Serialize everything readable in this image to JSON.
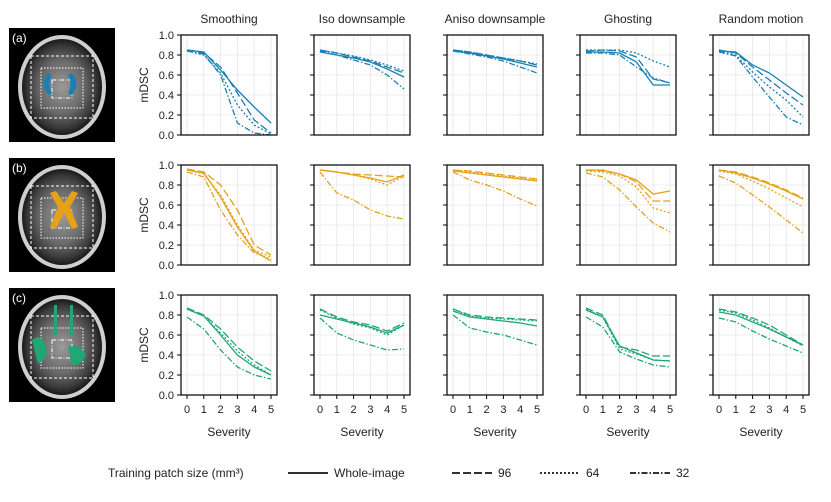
{
  "chart_data": {
    "type": "line",
    "columns": [
      "Smoothing",
      "Iso downsample",
      "Aniso downsample",
      "Ghosting",
      "Random motion"
    ],
    "rows": [
      {
        "label": "(a)",
        "color": "#1a7fb4"
      },
      {
        "label": "(b)",
        "color": "#e6a11b"
      },
      {
        "label": "(c)",
        "color": "#1fa774"
      }
    ],
    "ylabel": "mDSC",
    "xlabel": "Severity",
    "x": [
      0,
      1,
      2,
      3,
      4,
      5
    ],
    "xticks": [
      "0",
      "1",
      "2",
      "3",
      "4",
      "5"
    ],
    "ylim": [
      0,
      1
    ],
    "yticks": [
      "0.0",
      "0.2",
      "0.4",
      "0.6",
      "0.8",
      "1.0"
    ],
    "grid": true,
    "legend": {
      "title": "Training patch size (mm³)",
      "entries": [
        {
          "label": "Whole-image",
          "style": "solid"
        },
        {
          "label": "96",
          "style": "dashed"
        },
        {
          "label": "64",
          "style": "dotted"
        },
        {
          "label": "32",
          "style": "dashdot"
        }
      ],
      "position": "bottom"
    },
    "series": [
      [
        [
          [
            0.85,
            0.83,
            0.65,
            0.45,
            0.28,
            0.12
          ],
          [
            0.85,
            0.82,
            0.68,
            0.42,
            0.15,
            0.02
          ],
          [
            0.84,
            0.8,
            0.62,
            0.3,
            0.1,
            0.01
          ],
          [
            0.84,
            0.81,
            0.6,
            0.12,
            0.02,
            0.0
          ]
        ],
        [
          [
            0.83,
            0.8,
            0.77,
            0.73,
            0.66,
            0.58
          ],
          [
            0.85,
            0.82,
            0.78,
            0.74,
            0.68,
            0.62
          ],
          [
            0.85,
            0.82,
            0.79,
            0.75,
            0.7,
            0.64
          ],
          [
            0.84,
            0.8,
            0.75,
            0.7,
            0.6,
            0.46
          ]
        ],
        [
          [
            0.84,
            0.82,
            0.79,
            0.76,
            0.72,
            0.68
          ],
          [
            0.85,
            0.83,
            0.8,
            0.77,
            0.74,
            0.7
          ],
          [
            0.85,
            0.83,
            0.8,
            0.77,
            0.74,
            0.71
          ],
          [
            0.84,
            0.81,
            0.78,
            0.74,
            0.68,
            0.62
          ]
        ],
        [
          [
            0.83,
            0.83,
            0.82,
            0.73,
            0.5,
            0.5
          ],
          [
            0.84,
            0.85,
            0.84,
            0.78,
            0.56,
            0.52
          ],
          [
            0.85,
            0.85,
            0.85,
            0.82,
            0.74,
            0.68
          ],
          [
            0.82,
            0.82,
            0.8,
            0.68,
            0.57,
            0.52
          ]
        ],
        [
          [
            0.84,
            0.83,
            0.7,
            0.62,
            0.5,
            0.38
          ],
          [
            0.85,
            0.82,
            0.68,
            0.55,
            0.42,
            0.3
          ],
          [
            0.84,
            0.8,
            0.63,
            0.48,
            0.35,
            0.18
          ],
          [
            0.83,
            0.79,
            0.58,
            0.38,
            0.18,
            0.1
          ]
        ]
      ],
      [
        [
          [
            0.95,
            0.92,
            0.68,
            0.38,
            0.14,
            0.04
          ],
          [
            0.96,
            0.93,
            0.8,
            0.55,
            0.2,
            0.1
          ],
          [
            0.95,
            0.91,
            0.7,
            0.4,
            0.15,
            0.08
          ],
          [
            0.93,
            0.88,
            0.55,
            0.3,
            0.12,
            0.06
          ]
        ],
        [
          [
            0.95,
            0.93,
            0.9,
            0.87,
            0.83,
            0.9
          ],
          [
            0.95,
            0.93,
            0.91,
            0.9,
            0.89,
            0.88
          ],
          [
            0.95,
            0.93,
            0.9,
            0.86,
            0.8,
            0.89
          ],
          [
            0.93,
            0.72,
            0.65,
            0.55,
            0.49,
            0.46
          ]
        ],
        [
          [
            0.94,
            0.92,
            0.9,
            0.88,
            0.86,
            0.84
          ],
          [
            0.95,
            0.94,
            0.92,
            0.9,
            0.88,
            0.86
          ],
          [
            0.95,
            0.93,
            0.91,
            0.89,
            0.87,
            0.85
          ],
          [
            0.93,
            0.85,
            0.8,
            0.74,
            0.66,
            0.59
          ]
        ],
        [
          [
            0.95,
            0.95,
            0.91,
            0.85,
            0.71,
            0.74
          ],
          [
            0.95,
            0.94,
            0.91,
            0.83,
            0.64,
            0.64
          ],
          [
            0.94,
            0.93,
            0.89,
            0.78,
            0.57,
            0.52
          ],
          [
            0.92,
            0.88,
            0.75,
            0.58,
            0.42,
            0.33
          ]
        ],
        [
          [
            0.95,
            0.92,
            0.87,
            0.81,
            0.74,
            0.66
          ],
          [
            0.95,
            0.93,
            0.88,
            0.82,
            0.75,
            0.67
          ],
          [
            0.94,
            0.91,
            0.84,
            0.76,
            0.67,
            0.58
          ],
          [
            0.89,
            0.82,
            0.7,
            0.58,
            0.45,
            0.32
          ]
        ]
      ],
      [
        [
          [
            0.86,
            0.79,
            0.6,
            0.4,
            0.28,
            0.2
          ],
          [
            0.87,
            0.8,
            0.66,
            0.48,
            0.34,
            0.24
          ],
          [
            0.86,
            0.79,
            0.62,
            0.44,
            0.3,
            0.2
          ],
          [
            0.78,
            0.66,
            0.45,
            0.28,
            0.2,
            0.16
          ]
        ],
        [
          [
            0.8,
            0.76,
            0.72,
            0.68,
            0.62,
            0.7
          ],
          [
            0.86,
            0.78,
            0.73,
            0.7,
            0.64,
            0.72
          ],
          [
            0.85,
            0.77,
            0.71,
            0.67,
            0.6,
            0.7
          ],
          [
            0.77,
            0.62,
            0.55,
            0.5,
            0.45,
            0.46
          ]
        ],
        [
          [
            0.84,
            0.78,
            0.76,
            0.74,
            0.72,
            0.69
          ],
          [
            0.86,
            0.8,
            0.78,
            0.77,
            0.76,
            0.75
          ],
          [
            0.86,
            0.79,
            0.77,
            0.76,
            0.75,
            0.74
          ],
          [
            0.8,
            0.67,
            0.63,
            0.6,
            0.55,
            0.5
          ]
        ],
        [
          [
            0.85,
            0.78,
            0.49,
            0.42,
            0.35,
            0.34
          ],
          [
            0.87,
            0.8,
            0.48,
            0.45,
            0.39,
            0.39
          ],
          [
            0.86,
            0.78,
            0.46,
            0.41,
            0.35,
            0.34
          ],
          [
            0.78,
            0.68,
            0.43,
            0.36,
            0.3,
            0.28
          ]
        ],
        [
          [
            0.83,
            0.8,
            0.73,
            0.66,
            0.58,
            0.5
          ],
          [
            0.86,
            0.83,
            0.77,
            0.7,
            0.6,
            0.5
          ],
          [
            0.85,
            0.82,
            0.75,
            0.67,
            0.58,
            0.49
          ],
          [
            0.77,
            0.73,
            0.64,
            0.56,
            0.49,
            0.42
          ]
        ]
      ]
    ]
  }
}
